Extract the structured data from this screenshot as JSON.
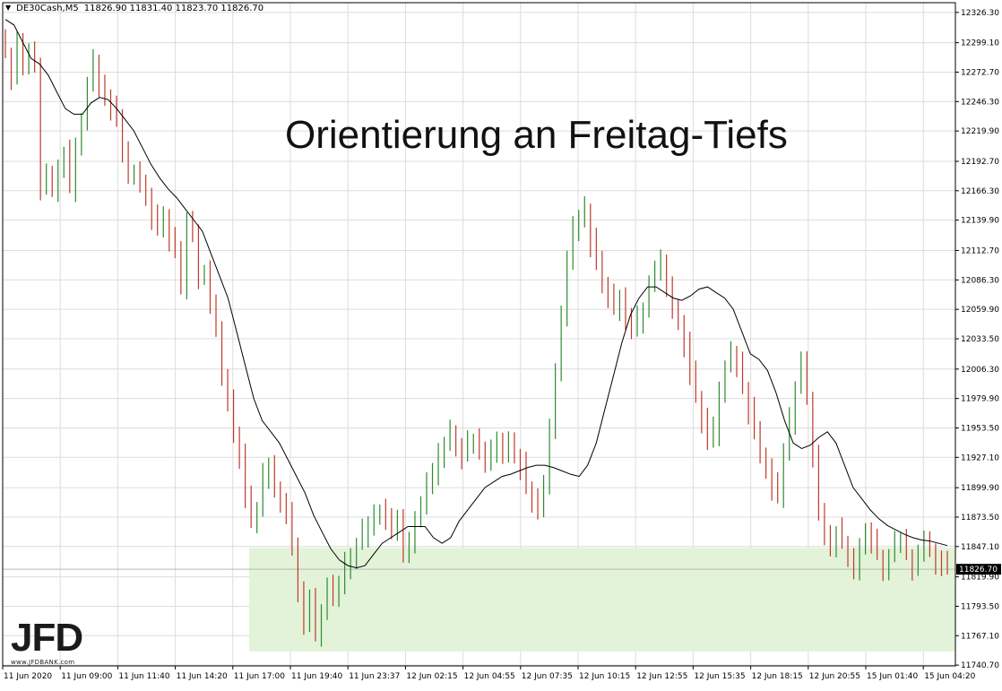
{
  "symbol_bar": {
    "dropdown_icon": "triangle-down-icon",
    "symbol": "DE30Cash,M5",
    "ohlc": "11826.90 11831.40 11823.70 11826.70"
  },
  "headline": "Orientierung an Freitag-Tiefs",
  "logo": {
    "mark": "JFD",
    "site": "www.JFDBANK.com"
  },
  "price_tag": "11826.70",
  "colors": {
    "bull": "#2e8b2e",
    "bear": "#c0392b",
    "ma": "#000000",
    "zone": "#e3f3d9",
    "grid": "#dcdcdc"
  },
  "chart_data": {
    "type": "candlestick",
    "symbol": "DE30Cash",
    "timeframe": "M5",
    "ylim": [
      11740.0,
      12335.0
    ],
    "y_ticks": [
      12326.3,
      12299.1,
      12272.7,
      12246.3,
      12219.9,
      12192.7,
      12166.3,
      12139.9,
      12112.7,
      12086.3,
      12059.9,
      12033.5,
      12006.3,
      11979.9,
      11953.5,
      11927.1,
      11899.9,
      11873.5,
      11847.1,
      11819.9,
      11793.5,
      11767.1,
      11740.7
    ],
    "x_ticks": [
      "11 Jun 2020",
      "11 Jun 09:00",
      "11 Jun 11:40",
      "11 Jun 14:20",
      "11 Jun 17:00",
      "11 Jun 19:40",
      "11 Jun 23:37",
      "12 Jun 02:15",
      "12 Jun 04:55",
      "12 Jun 07:35",
      "12 Jun 10:15",
      "12 Jun 12:55",
      "12 Jun 15:35",
      "12 Jun 18:15",
      "12 Jun 20:55",
      "15 Jun 01:40",
      "15 Jun 04:20"
    ],
    "current_price": 11826.7,
    "support_zone": {
      "from": 11753,
      "to": 11846,
      "start": "11 Jun 17:00"
    },
    "closes": [
      12290,
      12270,
      12300,
      12280,
      12290,
      12280,
      12170,
      12180,
      12170,
      12190,
      12200,
      12170,
      12210,
      12230,
      12260,
      12280,
      12260,
      12250,
      12240,
      12230,
      12200,
      12180,
      12180,
      12170,
      12160,
      12140,
      12130,
      12140,
      12120,
      12110,
      12080,
      12140,
      12130,
      12090,
      12090,
      12060,
      12040,
      12000,
      11980,
      11950,
      11930,
      11890,
      11870,
      11880,
      11910,
      11920,
      11900,
      11890,
      11880,
      11850,
      11810,
      11780,
      11800,
      11770,
      11790,
      11810,
      11800,
      11810,
      11830,
      11840,
      11850,
      11860,
      11870,
      11880,
      11880,
      11870,
      11860,
      11870,
      11840,
      11850,
      11870,
      11880,
      11900,
      11910,
      11930,
      11940,
      11950,
      11940,
      11930,
      11940,
      11940,
      11930,
      11920,
      11930,
      11940,
      11930,
      11940,
      11930,
      11920,
      11900,
      11890,
      11880,
      11900,
      11950,
      12000,
      12050,
      12100,
      12130,
      12140,
      12150,
      12120,
      12100,
      12080,
      12070,
      12060,
      12070,
      12050,
      12040,
      12050,
      12060,
      12080,
      12090,
      12100,
      12080,
      12060,
      12050,
      12030,
      12000,
      11980,
      11960,
      11940,
      11950,
      11990,
      12010,
      12020,
      12010,
      11990,
      11970,
      11950,
      11930,
      11920,
      11900,
      11890,
      11930,
      11960,
      11990,
      12010,
      11980,
      11930,
      11880,
      11860,
      11850,
      11860,
      11850,
      11840,
      11830,
      11850,
      11860,
      11850,
      11840,
      11830,
      11840,
      11850,
      11850,
      11840,
      11830,
      11840,
      11850,
      11845,
      11835,
      11830,
      11826.7
    ],
    "ma_values": [
      12320,
      12315,
      12300,
      12285,
      12280,
      12270,
      12255,
      12240,
      12235,
      12235,
      12245,
      12250,
      12248,
      12240,
      12230,
      12220,
      12205,
      12190,
      12178,
      12168,
      12160,
      12150,
      12140,
      12130,
      12110,
      12090,
      12070,
      12040,
      12010,
      11980,
      11960,
      11950,
      11940,
      11925,
      11910,
      11895,
      11875,
      11860,
      11845,
      11835,
      11830,
      11828,
      11830,
      11840,
      11850,
      11855,
      11860,
      11865,
      11865,
      11865,
      11855,
      11850,
      11855,
      11870,
      11880,
      11890,
      11900,
      11905,
      11910,
      11912,
      11915,
      11918,
      11920,
      11920,
      11918,
      11915,
      11912,
      11910,
      11920,
      11940,
      11970,
      12000,
      12030,
      12055,
      12070,
      12080,
      12080,
      12075,
      12070,
      12068,
      12072,
      12078,
      12080,
      12075,
      12070,
      12060,
      12040,
      12020,
      12015,
      12005,
      11985,
      11960,
      11940,
      11935,
      11938,
      11945,
      11950,
      11940,
      11920,
      11900,
      11890,
      11880,
      11872,
      11866,
      11862,
      11858,
      11855,
      11853,
      11852,
      11850,
      11848
    ]
  }
}
